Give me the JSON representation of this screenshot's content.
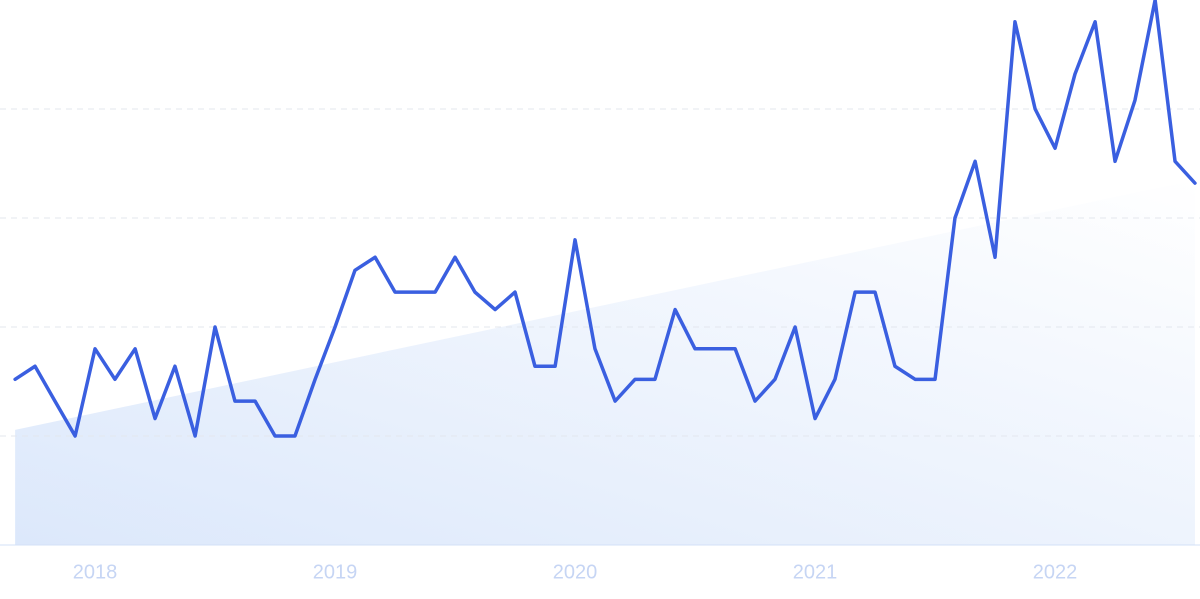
{
  "chart_data": {
    "type": "line",
    "xlim": [
      2017.604,
      2022.604
    ],
    "xticks": [
      2018,
      2019,
      2020,
      2021,
      2022
    ],
    "ylim": [
      0,
      125
    ],
    "yticks": [
      0,
      25,
      50,
      75,
      100
    ],
    "grid": true,
    "series": [
      {
        "color": "#3a5fe0",
        "x": [
          2017.667,
          2017.75,
          2017.833,
          2017.917,
          2018,
          2018.083,
          2018.167,
          2018.25,
          2018.333,
          2018.417,
          2018.5,
          2018.583,
          2018.667,
          2018.75,
          2018.833,
          2018.917,
          2019,
          2019.083,
          2019.167,
          2019.25,
          2019.333,
          2019.417,
          2019.5,
          2019.583,
          2019.667,
          2019.75,
          2019.833,
          2019.917,
          2020,
          2020.083,
          2020.167,
          2020.25,
          2020.333,
          2020.417,
          2020.5,
          2020.583,
          2020.667,
          2020.75,
          2020.833,
          2020.917,
          2021,
          2021.083,
          2021.167,
          2021.25,
          2021.333,
          2021.417,
          2021.5,
          2021.583,
          2021.667,
          2021.75,
          2021.833,
          2021.917,
          2022,
          2022.083,
          2022.167,
          2022.25,
          2022.333,
          2022.417,
          2022.5,
          2022.583
        ],
        "values": [
          38,
          41,
          33,
          25,
          45,
          38,
          45,
          29,
          41,
          25,
          50,
          33,
          33,
          25,
          25,
          38,
          50,
          63,
          66,
          58,
          58,
          58,
          66,
          58,
          54,
          58,
          41,
          41,
          70,
          45,
          33,
          38,
          38,
          54,
          45,
          45,
          45,
          33,
          38,
          50,
          29,
          38,
          58,
          58,
          41,
          38,
          38,
          75,
          88,
          66,
          120,
          100,
          91,
          108,
          120,
          88,
          102,
          125,
          88,
          83
        ]
      },
      {
        "color": "#dce8fb",
        "area": true,
        "x": [
          2017.667,
          2022.583
        ],
        "values": [
          26.4,
          83.7
        ]
      }
    ]
  }
}
